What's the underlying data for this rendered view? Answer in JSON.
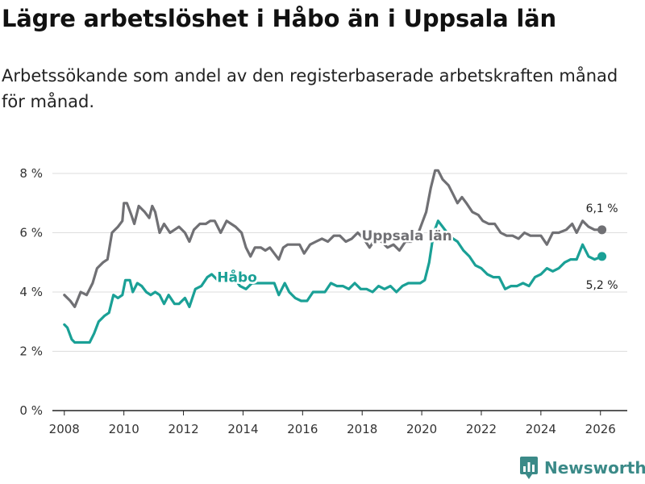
{
  "title": "Lägre arbetslöshet i Håbo än i Uppsala län",
  "subtitle": "Arbetssökande som andel av den registerbaserade arbetskraften månad för månad.",
  "brand": {
    "name": "Newsworthy",
    "icon": "newsworthy-logo-icon",
    "color": "#3b8a88"
  },
  "colors": {
    "uppsala": "#707074",
    "habo": "#1aa096",
    "grid": "#dddddd",
    "axis": "#222222"
  },
  "chart_data": {
    "type": "line",
    "title": "Lägre arbetslöshet i Håbo än i Uppsala län",
    "xlabel": "",
    "ylabel": "",
    "xlim": [
      2007.6,
      2026.9
    ],
    "ylim": [
      0,
      8
    ],
    "yticks": [
      0,
      2,
      4,
      6,
      8
    ],
    "ytick_labels": [
      "0 %",
      "2 %",
      "4 %",
      "6 %",
      "8 %"
    ],
    "xticks": [
      2008,
      2010,
      2012,
      2014,
      2016,
      2018,
      2020,
      2022,
      2024,
      2026
    ],
    "xtick_labels": [
      "2008",
      "2010",
      "2012",
      "2014",
      "2016",
      "2018",
      "2020",
      "2022",
      "2024",
      "2026"
    ],
    "series": [
      {
        "name": "Uppsala län",
        "color": "#707074",
        "end_label": "6,1 %",
        "points": [
          [
            2008.0,
            3.9
          ],
          [
            2008.2,
            3.7
          ],
          [
            2008.35,
            3.5
          ],
          [
            2008.55,
            4.0
          ],
          [
            2008.75,
            3.9
          ],
          [
            2008.95,
            4.3
          ],
          [
            2009.1,
            4.8
          ],
          [
            2009.3,
            5.0
          ],
          [
            2009.45,
            5.1
          ],
          [
            2009.6,
            6.0
          ],
          [
            2009.8,
            6.2
          ],
          [
            2009.95,
            6.4
          ],
          [
            2010.0,
            7.0
          ],
          [
            2010.1,
            7.0
          ],
          [
            2010.25,
            6.6
          ],
          [
            2010.35,
            6.3
          ],
          [
            2010.5,
            6.9
          ],
          [
            2010.7,
            6.7
          ],
          [
            2010.85,
            6.5
          ],
          [
            2010.95,
            6.9
          ],
          [
            2011.05,
            6.7
          ],
          [
            2011.2,
            6.0
          ],
          [
            2011.35,
            6.3
          ],
          [
            2011.55,
            6.0
          ],
          [
            2011.7,
            6.1
          ],
          [
            2011.85,
            6.2
          ],
          [
            2012.05,
            6.0
          ],
          [
            2012.2,
            5.7
          ],
          [
            2012.35,
            6.1
          ],
          [
            2012.55,
            6.3
          ],
          [
            2012.75,
            6.3
          ],
          [
            2012.9,
            6.4
          ],
          [
            2013.05,
            6.4
          ],
          [
            2013.25,
            6.0
          ],
          [
            2013.45,
            6.4
          ],
          [
            2013.6,
            6.3
          ],
          [
            2013.75,
            6.2
          ],
          [
            2013.95,
            6.0
          ],
          [
            2014.1,
            5.5
          ],
          [
            2014.25,
            5.2
          ],
          [
            2014.4,
            5.5
          ],
          [
            2014.6,
            5.5
          ],
          [
            2014.75,
            5.4
          ],
          [
            2014.9,
            5.5
          ],
          [
            2015.05,
            5.3
          ],
          [
            2015.2,
            5.1
          ],
          [
            2015.35,
            5.5
          ],
          [
            2015.5,
            5.6
          ],
          [
            2015.7,
            5.6
          ],
          [
            2015.9,
            5.6
          ],
          [
            2016.05,
            5.3
          ],
          [
            2016.25,
            5.6
          ],
          [
            2016.45,
            5.7
          ],
          [
            2016.65,
            5.8
          ],
          [
            2016.85,
            5.7
          ],
          [
            2017.05,
            5.9
          ],
          [
            2017.25,
            5.9
          ],
          [
            2017.45,
            5.7
          ],
          [
            2017.65,
            5.8
          ],
          [
            2017.85,
            6.0
          ],
          [
            2018.05,
            5.8
          ],
          [
            2018.25,
            5.5
          ],
          [
            2018.45,
            5.8
          ],
          [
            2018.65,
            5.7
          ],
          [
            2018.85,
            5.5
          ],
          [
            2019.05,
            5.6
          ],
          [
            2019.25,
            5.4
          ],
          [
            2019.45,
            5.7
          ],
          [
            2019.65,
            5.7
          ],
          [
            2019.85,
            5.9
          ],
          [
            2020.0,
            6.3
          ],
          [
            2020.15,
            6.7
          ],
          [
            2020.3,
            7.5
          ],
          [
            2020.45,
            8.1
          ],
          [
            2020.55,
            8.1
          ],
          [
            2020.7,
            7.8
          ],
          [
            2020.9,
            7.6
          ],
          [
            2021.05,
            7.3
          ],
          [
            2021.2,
            7.0
          ],
          [
            2021.35,
            7.2
          ],
          [
            2021.5,
            7.0
          ],
          [
            2021.7,
            6.7
          ],
          [
            2021.9,
            6.6
          ],
          [
            2022.05,
            6.4
          ],
          [
            2022.25,
            6.3
          ],
          [
            2022.45,
            6.3
          ],
          [
            2022.65,
            6.0
          ],
          [
            2022.85,
            5.9
          ],
          [
            2023.05,
            5.9
          ],
          [
            2023.25,
            5.8
          ],
          [
            2023.45,
            6.0
          ],
          [
            2023.65,
            5.9
          ],
          [
            2023.85,
            5.9
          ],
          [
            2024.0,
            5.9
          ],
          [
            2024.2,
            5.6
          ],
          [
            2024.4,
            6.0
          ],
          [
            2024.6,
            6.0
          ],
          [
            2024.85,
            6.1
          ],
          [
            2025.05,
            6.3
          ],
          [
            2025.2,
            6.0
          ],
          [
            2025.4,
            6.4
          ],
          [
            2025.6,
            6.2
          ],
          [
            2025.8,
            6.1
          ],
          [
            2026.05,
            6.1
          ]
        ]
      },
      {
        "name": "Håbo",
        "color": "#1aa096",
        "end_label": "5,2 %",
        "points": [
          [
            2008.0,
            2.9
          ],
          [
            2008.1,
            2.8
          ],
          [
            2008.25,
            2.4
          ],
          [
            2008.35,
            2.3
          ],
          [
            2008.55,
            2.3
          ],
          [
            2008.75,
            2.3
          ],
          [
            2008.85,
            2.3
          ],
          [
            2009.0,
            2.6
          ],
          [
            2009.15,
            3.0
          ],
          [
            2009.35,
            3.2
          ],
          [
            2009.5,
            3.3
          ],
          [
            2009.65,
            3.9
          ],
          [
            2009.8,
            3.8
          ],
          [
            2009.95,
            3.9
          ],
          [
            2010.05,
            4.4
          ],
          [
            2010.2,
            4.4
          ],
          [
            2010.3,
            4.0
          ],
          [
            2010.45,
            4.3
          ],
          [
            2010.6,
            4.2
          ],
          [
            2010.75,
            4.0
          ],
          [
            2010.9,
            3.9
          ],
          [
            2011.05,
            4.0
          ],
          [
            2011.2,
            3.9
          ],
          [
            2011.35,
            3.6
          ],
          [
            2011.5,
            3.9
          ],
          [
            2011.7,
            3.6
          ],
          [
            2011.85,
            3.6
          ],
          [
            2012.05,
            3.8
          ],
          [
            2012.2,
            3.5
          ],
          [
            2012.4,
            4.1
          ],
          [
            2012.6,
            4.2
          ],
          [
            2012.8,
            4.5
          ],
          [
            2012.95,
            4.6
          ],
          [
            2013.15,
            4.4
          ],
          [
            2013.35,
            4.5
          ],
          [
            2013.55,
            4.5
          ],
          [
            2013.75,
            4.4
          ],
          [
            2013.9,
            4.2
          ],
          [
            2014.1,
            4.1
          ],
          [
            2014.3,
            4.3
          ],
          [
            2014.5,
            4.3
          ],
          [
            2014.7,
            4.3
          ],
          [
            2014.9,
            4.3
          ],
          [
            2015.05,
            4.3
          ],
          [
            2015.2,
            3.9
          ],
          [
            2015.4,
            4.3
          ],
          [
            2015.55,
            4.0
          ],
          [
            2015.75,
            3.8
          ],
          [
            2015.95,
            3.7
          ],
          [
            2016.15,
            3.7
          ],
          [
            2016.35,
            4.0
          ],
          [
            2016.55,
            4.0
          ],
          [
            2016.75,
            4.0
          ],
          [
            2016.95,
            4.3
          ],
          [
            2017.15,
            4.2
          ],
          [
            2017.35,
            4.2
          ],
          [
            2017.55,
            4.1
          ],
          [
            2017.75,
            4.3
          ],
          [
            2017.95,
            4.1
          ],
          [
            2018.15,
            4.1
          ],
          [
            2018.35,
            4.0
          ],
          [
            2018.55,
            4.2
          ],
          [
            2018.75,
            4.1
          ],
          [
            2018.95,
            4.2
          ],
          [
            2019.15,
            4.0
          ],
          [
            2019.35,
            4.2
          ],
          [
            2019.55,
            4.3
          ],
          [
            2019.75,
            4.3
          ],
          [
            2019.95,
            4.3
          ],
          [
            2020.1,
            4.4
          ],
          [
            2020.25,
            5.0
          ],
          [
            2020.4,
            6.0
          ],
          [
            2020.55,
            6.4
          ],
          [
            2020.7,
            6.2
          ],
          [
            2020.85,
            6.0
          ],
          [
            2021.05,
            5.8
          ],
          [
            2021.2,
            5.7
          ],
          [
            2021.4,
            5.4
          ],
          [
            2021.6,
            5.2
          ],
          [
            2021.8,
            4.9
          ],
          [
            2022.0,
            4.8
          ],
          [
            2022.2,
            4.6
          ],
          [
            2022.4,
            4.5
          ],
          [
            2022.6,
            4.5
          ],
          [
            2022.8,
            4.1
          ],
          [
            2023.0,
            4.2
          ],
          [
            2023.2,
            4.2
          ],
          [
            2023.4,
            4.3
          ],
          [
            2023.6,
            4.2
          ],
          [
            2023.8,
            4.5
          ],
          [
            2024.0,
            4.6
          ],
          [
            2024.2,
            4.8
          ],
          [
            2024.4,
            4.7
          ],
          [
            2024.6,
            4.8
          ],
          [
            2024.8,
            5.0
          ],
          [
            2025.0,
            5.1
          ],
          [
            2025.2,
            5.1
          ],
          [
            2025.4,
            5.6
          ],
          [
            2025.6,
            5.2
          ],
          [
            2025.8,
            5.1
          ],
          [
            2026.05,
            5.2
          ]
        ]
      }
    ]
  }
}
